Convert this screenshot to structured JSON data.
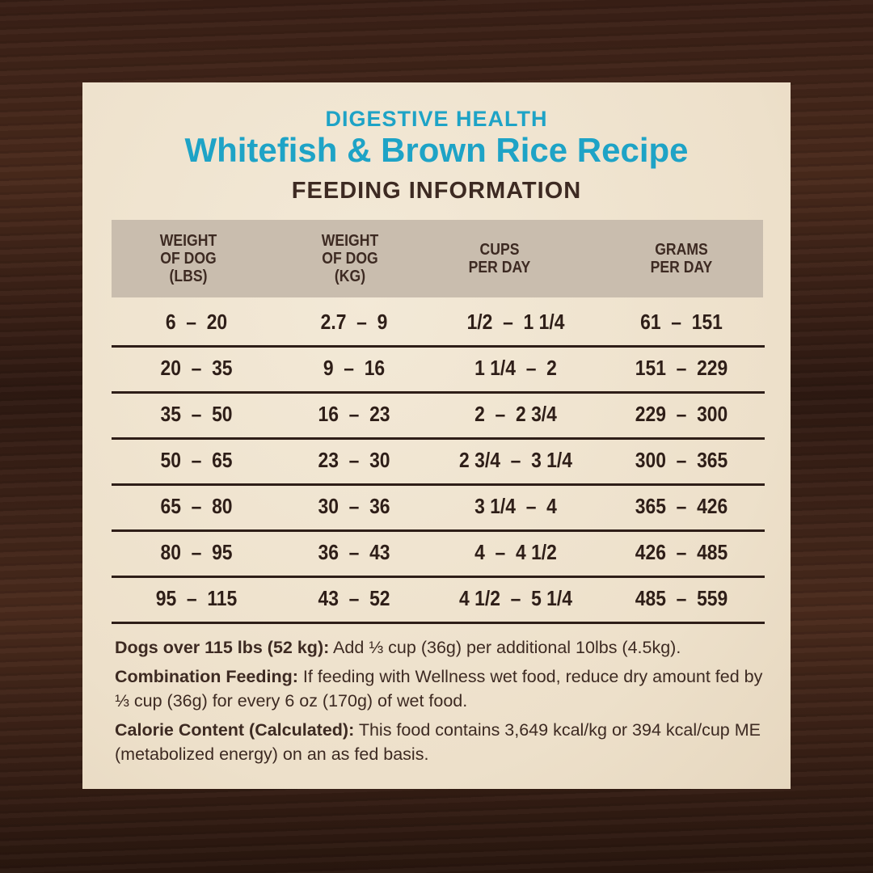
{
  "header": {
    "subtitle": "DIGESTIVE HEALTH",
    "title": "Whitefish & Brown Rice Recipe",
    "section": "FEEDING INFORMATION"
  },
  "table": {
    "columns": [
      "WEIGHT\nOF DOG\n(LBS)",
      "WEIGHT\nOF DOG\n(KG)",
      "CUPS\nPER DAY",
      "GRAMS\nPER DAY"
    ],
    "rows": [
      [
        "6  –  20",
        "2.7  –  9",
        "1/2  –  1 1/4",
        "61  –  151"
      ],
      [
        "20  –  35",
        "9  –  16",
        "1 1/4  –  2",
        "151  –  229"
      ],
      [
        "35  –  50",
        "16  –  23",
        "2  –  2 3/4",
        "229  –  300"
      ],
      [
        "50  –  65",
        "23  –  30",
        "2 3/4  –  3 1/4",
        "300  –  365"
      ],
      [
        "65  –  80",
        "30  –  36",
        "3 1/4  –  4",
        "365  –  426"
      ],
      [
        "80  –  95",
        "36  –  43",
        "4  –  4 1/2",
        "426  –  485"
      ],
      [
        "95  –  115",
        "43  –  52",
        "4 1/2  –  5 1/4",
        "485  –  559"
      ]
    ]
  },
  "notes": [
    {
      "label": "Dogs over 115 lbs (52 kg):",
      "text": " Add ⅓ cup (36g) per additional 10lbs (4.5kg)."
    },
    {
      "label": "Combination Feeding:",
      "text": " If feeding with Wellness wet food, reduce dry amount fed by ⅓ cup (36g) for every 6 oz (170g) of wet food."
    },
    {
      "label": "Calorie Content (Calculated):",
      "text": " This food contains 3,649 kcal/kg or 394 kcal/cup ME (metabolized energy) on an as fed basis."
    }
  ],
  "colors": {
    "accent": "#1ea3c6",
    "text": "#3d2a22",
    "panel": "#efe3cf",
    "header_band": "#c9bdae"
  }
}
